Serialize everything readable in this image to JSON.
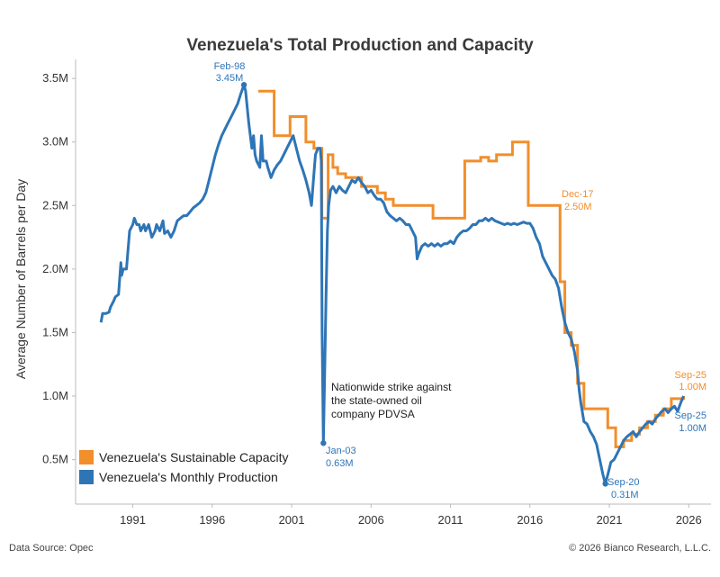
{
  "chart_data": {
    "type": "line",
    "title": "Venezuela's Total Production and Capacity",
    "ylabel": "Average Number of Barrels per Day",
    "xlabel": "",
    "ylim": [
      0.15,
      3.65
    ],
    "y_ticks": [
      {
        "value": 3.5,
        "label": "3.5M"
      },
      {
        "value": 3.0,
        "label": "3.0M"
      },
      {
        "value": 2.5,
        "label": "2.5M"
      },
      {
        "value": 2.0,
        "label": "2.0M"
      },
      {
        "value": 1.5,
        "label": "1.5M"
      },
      {
        "value": 1.0,
        "label": "1.0M"
      },
      {
        "value": 0.5,
        "label": "0.5M"
      }
    ],
    "xlim": [
      1987.4,
      2027.4
    ],
    "x_ticks": [
      "1991",
      "1996",
      "2001",
      "2006",
      "2011",
      "2016",
      "2021",
      "2026"
    ],
    "grid": false,
    "legend_position": "bottom-left",
    "series": [
      {
        "name": "Venezuela's Sustainable Capacity",
        "color": "#f28e2b",
        "step": true,
        "points": [
          [
            1998.9,
            3.4
          ],
          [
            1999.9,
            3.4
          ],
          [
            1999.9,
            3.05
          ],
          [
            2000.9,
            3.05
          ],
          [
            2000.9,
            3.2
          ],
          [
            2001.9,
            3.2
          ],
          [
            2001.9,
            3.0
          ],
          [
            2002.4,
            3.0
          ],
          [
            2002.4,
            2.95
          ],
          [
            2002.9,
            2.95
          ],
          [
            2002.9,
            2.4
          ],
          [
            2003.3,
            2.4
          ],
          [
            2003.3,
            2.9
          ],
          [
            2003.6,
            2.9
          ],
          [
            2003.6,
            2.8
          ],
          [
            2003.9,
            2.8
          ],
          [
            2003.9,
            2.75
          ],
          [
            2004.4,
            2.75
          ],
          [
            2004.4,
            2.72
          ],
          [
            2005.4,
            2.72
          ],
          [
            2005.4,
            2.65
          ],
          [
            2006.4,
            2.65
          ],
          [
            2006.4,
            2.6
          ],
          [
            2006.9,
            2.6
          ],
          [
            2006.9,
            2.55
          ],
          [
            2007.4,
            2.55
          ],
          [
            2007.4,
            2.5
          ],
          [
            2009.9,
            2.5
          ],
          [
            2009.9,
            2.4
          ],
          [
            2011.9,
            2.4
          ],
          [
            2011.9,
            2.85
          ],
          [
            2012.9,
            2.85
          ],
          [
            2012.9,
            2.88
          ],
          [
            2013.4,
            2.88
          ],
          [
            2013.4,
            2.85
          ],
          [
            2013.9,
            2.85
          ],
          [
            2013.9,
            2.9
          ],
          [
            2014.9,
            2.9
          ],
          [
            2014.9,
            3.0
          ],
          [
            2015.9,
            3.0
          ],
          [
            2015.9,
            2.5
          ],
          [
            2017.9,
            2.5
          ],
          [
            2017.9,
            1.9
          ],
          [
            2018.2,
            1.9
          ],
          [
            2018.2,
            1.5
          ],
          [
            2018.6,
            1.5
          ],
          [
            2018.6,
            1.4
          ],
          [
            2019.0,
            1.4
          ],
          [
            2019.0,
            1.1
          ],
          [
            2019.4,
            1.1
          ],
          [
            2019.4,
            0.9
          ],
          [
            2020.9,
            0.9
          ],
          [
            2020.9,
            0.75
          ],
          [
            2021.4,
            0.75
          ],
          [
            2021.4,
            0.6
          ],
          [
            2021.9,
            0.6
          ],
          [
            2021.9,
            0.65
          ],
          [
            2022.4,
            0.65
          ],
          [
            2022.4,
            0.7
          ],
          [
            2022.9,
            0.7
          ],
          [
            2022.9,
            0.75
          ],
          [
            2023.4,
            0.75
          ],
          [
            2023.4,
            0.8
          ],
          [
            2023.9,
            0.8
          ],
          [
            2023.9,
            0.85
          ],
          [
            2024.4,
            0.85
          ],
          [
            2024.4,
            0.9
          ],
          [
            2024.9,
            0.9
          ],
          [
            2024.9,
            0.98
          ],
          [
            2025.67,
            0.98
          ],
          [
            2025.67,
            1.0
          ]
        ]
      },
      {
        "name": "Venezuela's Monthly Production",
        "color": "#2e75b6",
        "step": false,
        "points": [
          [
            1989.0,
            1.58
          ],
          [
            1989.1,
            1.65
          ],
          [
            1989.3,
            1.65
          ],
          [
            1989.5,
            1.66
          ],
          [
            1989.6,
            1.7
          ],
          [
            1989.8,
            1.75
          ],
          [
            1989.9,
            1.78
          ],
          [
            1990.1,
            1.8
          ],
          [
            1990.25,
            2.05
          ],
          [
            1990.3,
            1.95
          ],
          [
            1990.4,
            2.0
          ],
          [
            1990.6,
            2.0
          ],
          [
            1990.8,
            2.3
          ],
          [
            1991.0,
            2.35
          ],
          [
            1991.1,
            2.4
          ],
          [
            1991.25,
            2.35
          ],
          [
            1991.4,
            2.35
          ],
          [
            1991.5,
            2.3
          ],
          [
            1991.7,
            2.35
          ],
          [
            1991.8,
            2.3
          ],
          [
            1992.0,
            2.35
          ],
          [
            1992.2,
            2.25
          ],
          [
            1992.4,
            2.3
          ],
          [
            1992.5,
            2.35
          ],
          [
            1992.7,
            2.3
          ],
          [
            1992.9,
            2.38
          ],
          [
            1993.0,
            2.28
          ],
          [
            1993.2,
            2.3
          ],
          [
            1993.4,
            2.25
          ],
          [
            1993.6,
            2.3
          ],
          [
            1993.8,
            2.38
          ],
          [
            1994.0,
            2.4
          ],
          [
            1994.2,
            2.42
          ],
          [
            1994.4,
            2.42
          ],
          [
            1994.6,
            2.45
          ],
          [
            1994.8,
            2.48
          ],
          [
            1995.0,
            2.5
          ],
          [
            1995.2,
            2.52
          ],
          [
            1995.4,
            2.55
          ],
          [
            1995.6,
            2.6
          ],
          [
            1995.8,
            2.7
          ],
          [
            1996.0,
            2.8
          ],
          [
            1996.2,
            2.9
          ],
          [
            1996.4,
            2.98
          ],
          [
            1996.6,
            3.05
          ],
          [
            1996.8,
            3.1
          ],
          [
            1997.0,
            3.15
          ],
          [
            1997.2,
            3.2
          ],
          [
            1997.4,
            3.25
          ],
          [
            1997.6,
            3.3
          ],
          [
            1997.8,
            3.38
          ],
          [
            1998.0,
            3.45
          ],
          [
            1998.1,
            3.4
          ],
          [
            1998.3,
            3.15
          ],
          [
            1998.5,
            2.95
          ],
          [
            1998.6,
            3.05
          ],
          [
            1998.7,
            2.9
          ],
          [
            1998.8,
            2.85
          ],
          [
            1999.0,
            2.8
          ],
          [
            1999.1,
            3.05
          ],
          [
            1999.2,
            2.85
          ],
          [
            1999.4,
            2.85
          ],
          [
            1999.5,
            2.8
          ],
          [
            1999.7,
            2.72
          ],
          [
            1999.9,
            2.78
          ],
          [
            2000.1,
            2.82
          ],
          [
            2000.3,
            2.85
          ],
          [
            2000.5,
            2.9
          ],
          [
            2000.7,
            2.95
          ],
          [
            2000.9,
            3.0
          ],
          [
            2001.1,
            3.05
          ],
          [
            2001.3,
            2.95
          ],
          [
            2001.5,
            2.85
          ],
          [
            2001.7,
            2.78
          ],
          [
            2001.9,
            2.7
          ],
          [
            2002.1,
            2.6
          ],
          [
            2002.25,
            2.5
          ],
          [
            2002.4,
            2.75
          ],
          [
            2002.5,
            2.9
          ],
          [
            2002.65,
            2.95
          ],
          [
            2002.8,
            2.95
          ],
          [
            2002.87,
            2.85
          ],
          [
            2002.92,
            1.5
          ],
          [
            2003.0,
            0.63
          ],
          [
            2003.08,
            1.2
          ],
          [
            2003.17,
            1.8
          ],
          [
            2003.25,
            2.3
          ],
          [
            2003.33,
            2.5
          ],
          [
            2003.45,
            2.62
          ],
          [
            2003.6,
            2.65
          ],
          [
            2003.8,
            2.6
          ],
          [
            2004.0,
            2.65
          ],
          [
            2004.2,
            2.62
          ],
          [
            2004.4,
            2.6
          ],
          [
            2004.6,
            2.65
          ],
          [
            2004.8,
            2.7
          ],
          [
            2005.0,
            2.68
          ],
          [
            2005.2,
            2.72
          ],
          [
            2005.4,
            2.68
          ],
          [
            2005.6,
            2.65
          ],
          [
            2005.8,
            2.6
          ],
          [
            2006.0,
            2.62
          ],
          [
            2006.2,
            2.58
          ],
          [
            2006.4,
            2.55
          ],
          [
            2006.6,
            2.55
          ],
          [
            2006.8,
            2.52
          ],
          [
            2007.0,
            2.45
          ],
          [
            2007.2,
            2.42
          ],
          [
            2007.4,
            2.4
          ],
          [
            2007.6,
            2.38
          ],
          [
            2007.8,
            2.4
          ],
          [
            2008.0,
            2.38
          ],
          [
            2008.2,
            2.35
          ],
          [
            2008.4,
            2.35
          ],
          [
            2008.6,
            2.3
          ],
          [
            2008.8,
            2.25
          ],
          [
            2008.9,
            2.08
          ],
          [
            2009.0,
            2.12
          ],
          [
            2009.2,
            2.18
          ],
          [
            2009.4,
            2.2
          ],
          [
            2009.6,
            2.18
          ],
          [
            2009.8,
            2.2
          ],
          [
            2010.0,
            2.18
          ],
          [
            2010.2,
            2.2
          ],
          [
            2010.4,
            2.18
          ],
          [
            2010.6,
            2.2
          ],
          [
            2010.8,
            2.2
          ],
          [
            2011.0,
            2.22
          ],
          [
            2011.2,
            2.2
          ],
          [
            2011.4,
            2.25
          ],
          [
            2011.6,
            2.28
          ],
          [
            2011.8,
            2.3
          ],
          [
            2012.0,
            2.3
          ],
          [
            2012.2,
            2.32
          ],
          [
            2012.4,
            2.35
          ],
          [
            2012.6,
            2.35
          ],
          [
            2012.8,
            2.38
          ],
          [
            2013.0,
            2.38
          ],
          [
            2013.2,
            2.4
          ],
          [
            2013.4,
            2.38
          ],
          [
            2013.6,
            2.4
          ],
          [
            2013.8,
            2.38
          ],
          [
            2014.0,
            2.37
          ],
          [
            2014.2,
            2.36
          ],
          [
            2014.4,
            2.35
          ],
          [
            2014.6,
            2.36
          ],
          [
            2014.8,
            2.35
          ],
          [
            2015.0,
            2.36
          ],
          [
            2015.2,
            2.35
          ],
          [
            2015.4,
            2.36
          ],
          [
            2015.6,
            2.37
          ],
          [
            2015.8,
            2.36
          ],
          [
            2016.0,
            2.36
          ],
          [
            2016.2,
            2.32
          ],
          [
            2016.4,
            2.25
          ],
          [
            2016.6,
            2.2
          ],
          [
            2016.8,
            2.1
          ],
          [
            2017.0,
            2.05
          ],
          [
            2017.2,
            2.0
          ],
          [
            2017.4,
            1.95
          ],
          [
            2017.6,
            1.92
          ],
          [
            2017.8,
            1.85
          ],
          [
            2018.0,
            1.7
          ],
          [
            2018.2,
            1.58
          ],
          [
            2018.4,
            1.5
          ],
          [
            2018.6,
            1.45
          ],
          [
            2018.8,
            1.35
          ],
          [
            2019.0,
            1.2
          ],
          [
            2019.1,
            1.05
          ],
          [
            2019.2,
            0.95
          ],
          [
            2019.4,
            0.8
          ],
          [
            2019.6,
            0.78
          ],
          [
            2019.8,
            0.72
          ],
          [
            2020.0,
            0.68
          ],
          [
            2020.2,
            0.62
          ],
          [
            2020.4,
            0.5
          ],
          [
            2020.6,
            0.38
          ],
          [
            2020.75,
            0.31
          ],
          [
            2020.9,
            0.38
          ],
          [
            2021.1,
            0.48
          ],
          [
            2021.3,
            0.5
          ],
          [
            2021.5,
            0.55
          ],
          [
            2021.7,
            0.6
          ],
          [
            2021.9,
            0.65
          ],
          [
            2022.1,
            0.68
          ],
          [
            2022.3,
            0.7
          ],
          [
            2022.5,
            0.72
          ],
          [
            2022.7,
            0.68
          ],
          [
            2022.9,
            0.72
          ],
          [
            2023.1,
            0.75
          ],
          [
            2023.3,
            0.78
          ],
          [
            2023.5,
            0.8
          ],
          [
            2023.7,
            0.78
          ],
          [
            2023.9,
            0.82
          ],
          [
            2024.1,
            0.85
          ],
          [
            2024.3,
            0.88
          ],
          [
            2024.5,
            0.9
          ],
          [
            2024.7,
            0.87
          ],
          [
            2024.9,
            0.9
          ],
          [
            2025.1,
            0.92
          ],
          [
            2025.3,
            0.88
          ],
          [
            2025.5,
            0.95
          ],
          [
            2025.67,
            1.0
          ]
        ]
      }
    ],
    "annotations": {
      "peak": {
        "date": "Feb-98",
        "value": "3.45M",
        "color": "#2e75b6"
      },
      "strike_low": {
        "date": "Jan-03",
        "value": "0.63M",
        "color": "#2e75b6"
      },
      "trough": {
        "date": "Sep-20",
        "value": "0.31M",
        "color": "#2e75b6"
      },
      "capacity_drop": {
        "date": "Dec-17",
        "value": "2.50M",
        "color": "#f28e2b"
      },
      "capacity_latest": {
        "date": "Sep-25",
        "value": "1.00M",
        "color": "#f28e2b"
      },
      "production_latest": {
        "date": "Sep-25",
        "value": "1.00M",
        "color": "#2e75b6"
      },
      "strike_note": [
        "Nationwide strike against",
        "the state-owned oil",
        "company PDVSA"
      ]
    }
  },
  "footer": {
    "source": "Data Source: Opec",
    "copyright": "© 2026 Bianco Research, L.L.C."
  }
}
